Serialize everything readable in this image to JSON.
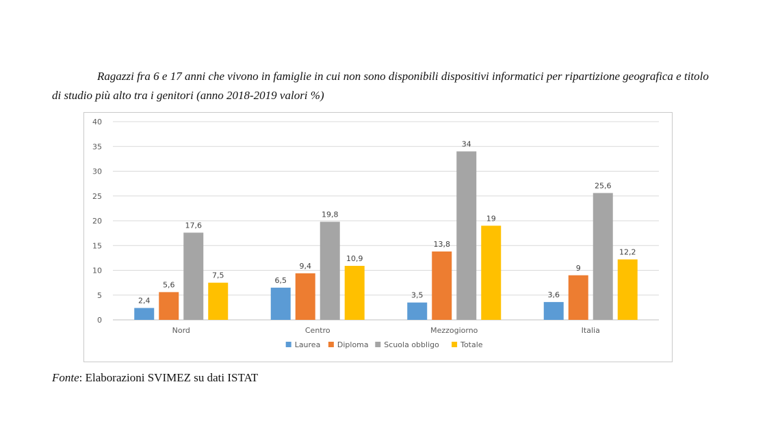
{
  "caption": "Ragazzi fra 6 e 17 anni che vivono in famiglie in cui non sono disponibili dispositivi informatici per ripartizione geografica e titolo di studio più alto tra i genitori (anno 2018-2019 valori %)",
  "source": {
    "label": "Fonte",
    "text": ": Elaborazioni SVIMEZ su dati ISTAT"
  },
  "chart_data": {
    "type": "bar",
    "categories": [
      "Nord",
      "Centro",
      "Mezzogiorno",
      "Italia"
    ],
    "series": [
      {
        "name": "Laurea",
        "color": "#5b9bd5",
        "values": [
          2.4,
          6.5,
          3.5,
          3.6
        ],
        "labels": [
          "2,4",
          "6,5",
          "3,5",
          "3,6"
        ]
      },
      {
        "name": "Diploma",
        "color": "#ed7d31",
        "values": [
          5.6,
          9.4,
          13.8,
          9
        ],
        "labels": [
          "5,6",
          "9,4",
          "13,8",
          "9"
        ]
      },
      {
        "name": "Scuola obbligo",
        "color": "#a5a5a5",
        "values": [
          17.6,
          19.8,
          34,
          25.6
        ],
        "labels": [
          "17,6",
          "19,8",
          "34",
          "25,6"
        ]
      },
      {
        "name": "Totale",
        "color": "#ffc000",
        "values": [
          7.5,
          10.9,
          19,
          12.2
        ],
        "labels": [
          "7,5",
          "10,9",
          "19",
          "12,2"
        ]
      }
    ],
    "ylim": [
      0,
      40
    ],
    "yticks": [
      0,
      5,
      10,
      15,
      20,
      25,
      30,
      35,
      40
    ],
    "grid": true,
    "legend": "bottom"
  }
}
